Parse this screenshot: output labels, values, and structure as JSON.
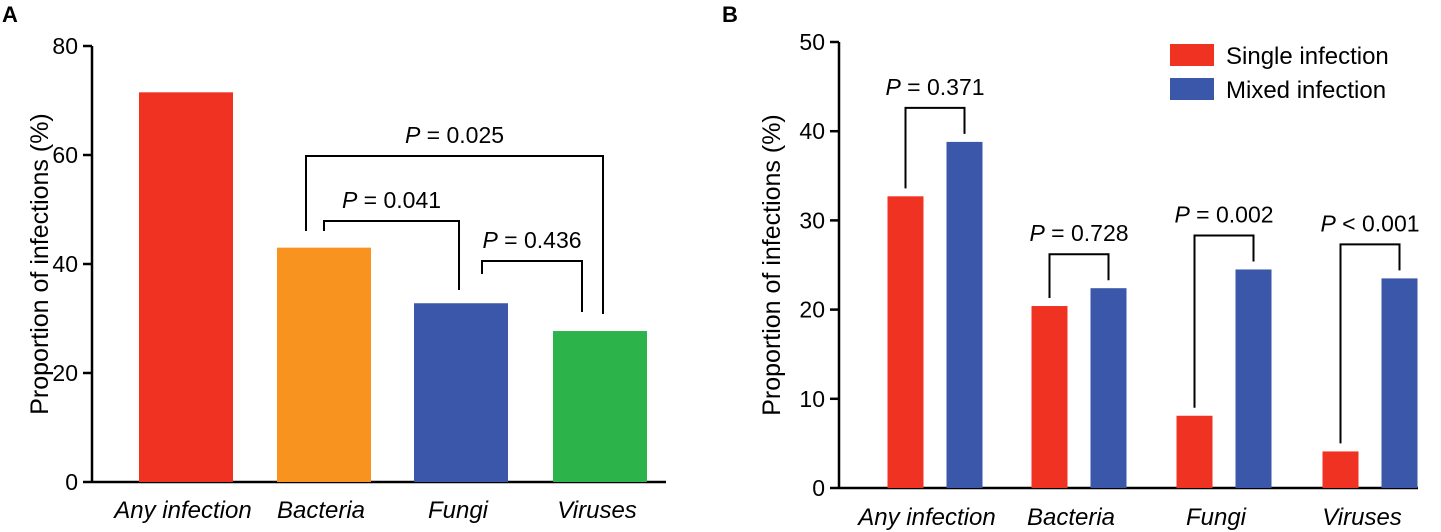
{
  "panel_a_label": "A",
  "panel_b_label": "B",
  "chart_data": [
    {
      "type": "bar",
      "panel": "A",
      "categories": [
        "Any infection",
        "Bacteria",
        "Fungi",
        "Viruses"
      ],
      "values": [
        71.5,
        43,
        32.8,
        27.7
      ],
      "colors": [
        "#f03223",
        "#f7931e",
        "#3b57a9",
        "#2cb34a"
      ],
      "ylabel": "Proportion of infections (%)",
      "ylim": [
        0,
        80
      ],
      "yticks": [
        0,
        20,
        40,
        60,
        80
      ],
      "grid": false,
      "annotations": [
        {
          "from": 1,
          "to": 3,
          "text": "= 0.025",
          "prefix": "P"
        },
        {
          "from": 1,
          "to": 2,
          "text": "= 0.041",
          "prefix": "P"
        },
        {
          "from": 2,
          "to": 3,
          "text": "= 0.436",
          "prefix": "P"
        }
      ]
    },
    {
      "type": "bar",
      "panel": "B",
      "categories": [
        "Any infection",
        "Bacteria",
        "Fungi",
        "Viruses"
      ],
      "series": [
        {
          "name": "Single infection",
          "color": "#f03223",
          "values": [
            32.7,
            20.4,
            8.1,
            4.1
          ]
        },
        {
          "name": "Mixed infection",
          "color": "#3b57a9",
          "values": [
            38.8,
            22.4,
            24.5,
            23.5
          ]
        }
      ],
      "ylabel": "Proportion of infections (%)",
      "ylim": [
        0,
        50
      ],
      "yticks": [
        0,
        10,
        20,
        30,
        40,
        50
      ],
      "legend_position": "top-right",
      "grid": false,
      "annotations": [
        {
          "category": 0,
          "text": "= 0.371",
          "prefix": "P"
        },
        {
          "category": 1,
          "text": "= 0.728",
          "prefix": "P"
        },
        {
          "category": 2,
          "text": "= 0.002",
          "prefix": "P"
        },
        {
          "category": 3,
          "text": "< 0.001",
          "prefix": "P"
        }
      ]
    }
  ]
}
